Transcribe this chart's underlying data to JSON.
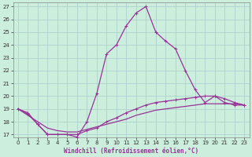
{
  "xlabel": "Windchill (Refroidissement éolien,°C)",
  "background_color": "#cceedd",
  "grid_color": "#aacccc",
  "line_color": "#993399",
  "xlim": [
    -0.5,
    23.5
  ],
  "ylim": [
    16.8,
    27.3
  ],
  "xticks": [
    0,
    1,
    2,
    3,
    4,
    5,
    6,
    7,
    8,
    9,
    10,
    11,
    12,
    13,
    14,
    15,
    16,
    17,
    18,
    19,
    20,
    21,
    22,
    23
  ],
  "yticks": [
    17,
    18,
    19,
    20,
    21,
    22,
    23,
    24,
    25,
    26,
    27
  ],
  "series1_x": [
    0,
    1,
    2,
    3,
    4,
    5,
    6,
    7,
    8,
    9,
    10,
    11,
    12,
    13,
    14,
    15,
    16,
    17,
    18,
    19,
    20,
    21,
    22,
    23
  ],
  "series1_y": [
    19.0,
    18.7,
    17.8,
    17.0,
    17.0,
    17.0,
    16.8,
    18.0,
    20.2,
    23.3,
    24.0,
    25.5,
    26.5,
    27.0,
    25.0,
    24.3,
    23.7,
    22.0,
    20.5,
    19.5,
    20.0,
    19.5,
    19.3,
    19.3
  ],
  "series2_x": [
    0,
    1,
    2,
    3,
    4,
    5,
    6,
    7,
    8,
    9,
    10,
    11,
    12,
    13,
    14,
    15,
    16,
    17,
    18,
    19,
    20,
    21,
    22,
    23
  ],
  "series2_y": [
    19.0,
    18.6,
    17.8,
    17.0,
    17.0,
    17.0,
    17.0,
    17.3,
    17.5,
    18.0,
    18.3,
    18.7,
    19.0,
    19.3,
    19.5,
    19.6,
    19.7,
    19.8,
    19.9,
    20.0,
    20.0,
    19.8,
    19.5,
    19.3
  ],
  "series3_x": [
    0,
    1,
    2,
    3,
    4,
    5,
    6,
    7,
    8,
    9,
    10,
    11,
    12,
    13,
    14,
    15,
    16,
    17,
    18,
    19,
    20,
    21,
    22,
    23
  ],
  "series3_y": [
    19.0,
    18.5,
    18.0,
    17.5,
    17.3,
    17.2,
    17.2,
    17.4,
    17.6,
    17.8,
    18.0,
    18.2,
    18.5,
    18.7,
    18.9,
    19.0,
    19.1,
    19.2,
    19.3,
    19.4,
    19.4,
    19.4,
    19.4,
    19.3
  ],
  "xlabel_fontsize": 5.5,
  "tick_fontsize": 5,
  "line_width": 0.9,
  "marker_size": 2.5
}
